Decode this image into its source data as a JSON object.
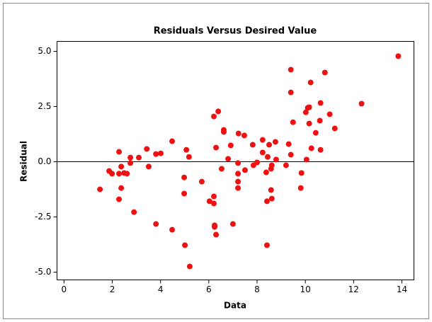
{
  "chart_data": {
    "type": "scatter",
    "title": "Residuals Versus Desired Value",
    "x_label": "Data",
    "y_label": "Residual",
    "color": "#ee1111",
    "x": [
      1.49,
      1.87,
      1.99,
      2.28,
      2.28,
      2.28,
      2.37,
      2.37,
      2.49,
      2.61,
      2.75,
      2.75,
      2.9,
      3.1,
      3.43,
      3.51,
      3.81,
      3.81,
      4.01,
      4.48,
      4.48,
      4.98,
      4.98,
      5.01,
      5.07,
      5.18,
      5.21,
      5.71,
      6.03,
      6.21,
      6.21,
      6.21,
      6.24,
      6.24,
      6.3,
      6.3,
      6.39,
      6.53,
      6.62,
      6.62,
      6.8,
      7.0,
      6.91,
      7.23,
      7.21,
      7.21,
      7.21,
      7.21,
      7.47,
      7.5,
      7.82,
      7.85,
      8.0,
      8.23,
      8.23,
      8.38,
      8.41,
      8.41,
      8.44,
      8.5,
      8.58,
      8.58,
      8.61,
      8.61,
      8.76,
      8.79,
      9.2,
      9.31,
      9.4,
      9.4,
      9.4,
      9.49,
      9.84,
      9.81,
      10.02,
      10.05,
      10.1,
      10.16,
      10.16,
      10.22,
      10.25,
      10.43,
      10.6,
      10.63,
      10.63,
      10.81,
      11.01,
      11.22,
      12.33,
      13.85
    ],
    "values": [
      -1.25,
      -0.42,
      -0.54,
      0.45,
      -0.54,
      -1.7,
      -0.22,
      -1.19,
      -0.51,
      -0.54,
      0.19,
      -0.06,
      -2.28,
      0.19,
      0.58,
      -0.22,
      0.35,
      -2.82,
      0.38,
      0.93,
      -3.08,
      -0.71,
      -1.44,
      -3.78,
      0.54,
      0.22,
      -4.74,
      -0.9,
      -1.79,
      2.05,
      -1.57,
      -1.89,
      -2.88,
      -2.95,
      0.64,
      -3.3,
      2.28,
      -0.32,
      1.44,
      1.35,
      0.13,
      -2.82,
      0.74,
      1.28,
      -0.06,
      -0.54,
      -0.9,
      -1.19,
      1.19,
      -0.38,
      0.77,
      -0.16,
      -0.03,
      0.42,
      0.99,
      -0.48,
      -1.79,
      -3.78,
      0.22,
      0.77,
      -0.32,
      -1.28,
      -0.16,
      -1.67,
      0.9,
      0.1,
      -0.16,
      0.8,
      4.17,
      3.14,
      0.32,
      1.79,
      -0.51,
      -1.19,
      2.24,
      0.1,
      2.44,
      2.47,
      1.73,
      3.59,
      0.61,
      1.31,
      1.86,
      2.66,
      0.54,
      4.04,
      2.15,
      1.51,
      2.63,
      4.78
    ],
    "xlim": [
      -0.29,
      14.5
    ],
    "ylim": [
      -5.35,
      5.45
    ],
    "xticks": [
      0,
      2,
      4,
      6,
      8,
      10,
      12,
      14
    ],
    "yticks": [
      {
        "value": 5,
        "label": "5.0"
      },
      2.5,
      {
        "value": 0,
        "label": "0.0"
      },
      -2.5,
      {
        "value": -5,
        "label": "-5.0"
      }
    ],
    "reference_line": 0
  }
}
